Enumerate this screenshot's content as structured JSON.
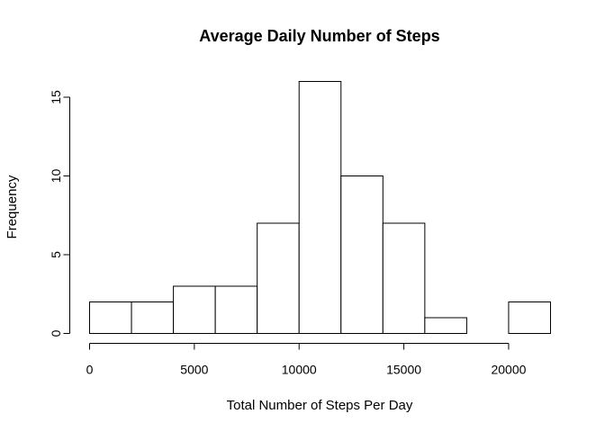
{
  "chart_data": {
    "type": "bar",
    "title": "Average Daily Number of Steps",
    "xlabel": "Total Number of Steps Per Day",
    "ylabel": "Frequency",
    "bins": [
      {
        "from": 0,
        "to": 2000,
        "count": 2
      },
      {
        "from": 2000,
        "to": 4000,
        "count": 2
      },
      {
        "from": 4000,
        "to": 6000,
        "count": 3
      },
      {
        "from": 6000,
        "to": 8000,
        "count": 3
      },
      {
        "from": 8000,
        "to": 10000,
        "count": 7
      },
      {
        "from": 10000,
        "to": 12000,
        "count": 16
      },
      {
        "from": 12000,
        "to": 14000,
        "count": 10
      },
      {
        "from": 14000,
        "to": 16000,
        "count": 7
      },
      {
        "from": 16000,
        "to": 18000,
        "count": 1
      },
      {
        "from": 18000,
        "to": 20000,
        "count": 0
      },
      {
        "from": 20000,
        "to": 22000,
        "count": 2
      }
    ],
    "xticks": [
      0,
      5000,
      10000,
      15000,
      20000
    ],
    "yticks": [
      0,
      5,
      10,
      15
    ],
    "xlim": [
      0,
      22000
    ],
    "ylim": [
      0,
      16
    ],
    "grid": false,
    "legend": "none",
    "colors": {
      "bar_fill": "#ffffff",
      "bar_stroke": "#000000"
    }
  }
}
